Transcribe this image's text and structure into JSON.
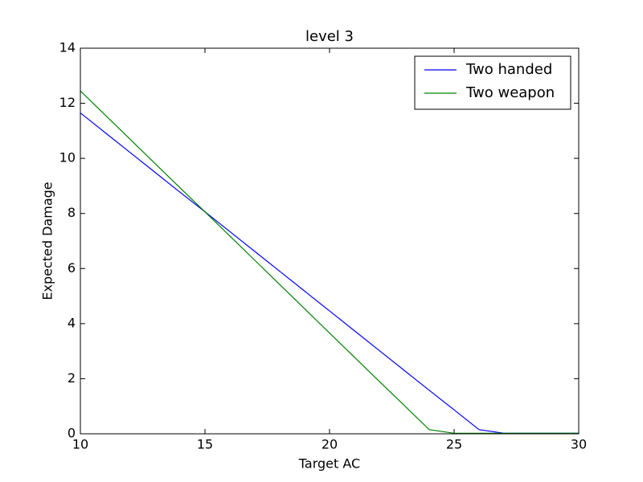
{
  "chart_data": {
    "type": "line",
    "title": "level 3",
    "xlabel": "Target AC",
    "ylabel": "Expected Damage",
    "x": [
      10,
      11,
      12,
      13,
      14,
      15,
      16,
      17,
      18,
      19,
      20,
      21,
      22,
      23,
      24,
      25,
      26,
      27,
      28,
      29,
      30
    ],
    "series": [
      {
        "name": "Two handed",
        "color": "#0000ff",
        "values": [
          11.65,
          10.93,
          10.21,
          9.49,
          8.77,
          8.06,
          7.34,
          6.62,
          5.9,
          5.18,
          4.46,
          3.74,
          3.02,
          2.3,
          1.58,
          0.87,
          0.15,
          0.02,
          0.02,
          0.02,
          0.02
        ]
      },
      {
        "name": "Two weapon",
        "color": "#008000",
        "values": [
          12.45,
          11.57,
          10.69,
          9.81,
          8.93,
          8.06,
          7.18,
          6.3,
          5.42,
          4.54,
          3.66,
          2.78,
          1.9,
          1.03,
          0.15,
          0.02,
          0.02,
          0.02,
          0.02,
          0.02,
          0.02
        ]
      }
    ],
    "xlim": [
      10,
      30
    ],
    "xticks": [
      10,
      15,
      20,
      25,
      30
    ],
    "ylim": [
      0,
      14
    ],
    "yticks": [
      0,
      2,
      4,
      6,
      8,
      10,
      12,
      14
    ],
    "legend": "upper right"
  }
}
